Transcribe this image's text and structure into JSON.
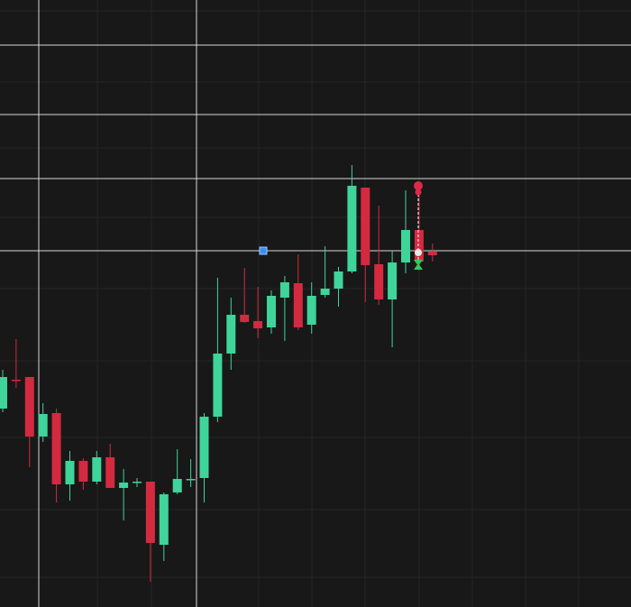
{
  "chart_data": {
    "type": "candlestick",
    "up_color": "#3fd49a",
    "down_color": "#d42a3f",
    "ylim": [
      0,
      673
    ],
    "open": [
      220,
      252,
      255,
      189,
      215,
      136,
      162,
      139,
      166,
      132,
      138,
      139,
      69,
      127,
      142,
      143,
      211,
      281,
      324,
      317,
      310,
      343,
      359,
      313,
      346,
      353,
      372,
      465,
      380,
      341,
      382,
      418,
      394
    ],
    "high": [
      263,
      297,
      255,
      226,
      220,
      173,
      165,
      173,
      181,
      153,
      143,
      139,
      127,
      175,
      164,
      215,
      365,
      343,
      376,
      355,
      351,
      367,
      391,
      360,
      400,
      377,
      490,
      465,
      445,
      395,
      462,
      463,
      403
    ],
    "low": [
      216,
      243,
      155,
      183,
      116,
      118,
      130,
      136,
      132,
      96,
      133,
      28,
      51,
      125,
      133,
      116,
      205,
      263,
      315,
      298,
      303,
      295,
      307,
      303,
      343,
      333,
      370,
      338,
      335,
      288,
      370,
      373,
      383
    ],
    "close": [
      255,
      251,
      189,
      214,
      136,
      162,
      139,
      166,
      132,
      138,
      139,
      71,
      125,
      142,
      142,
      211,
      281,
      324,
      316,
      309,
      345,
      360,
      310,
      345,
      353,
      372,
      467,
      379,
      341,
      382,
      418,
      383,
      390
    ]
  }
}
